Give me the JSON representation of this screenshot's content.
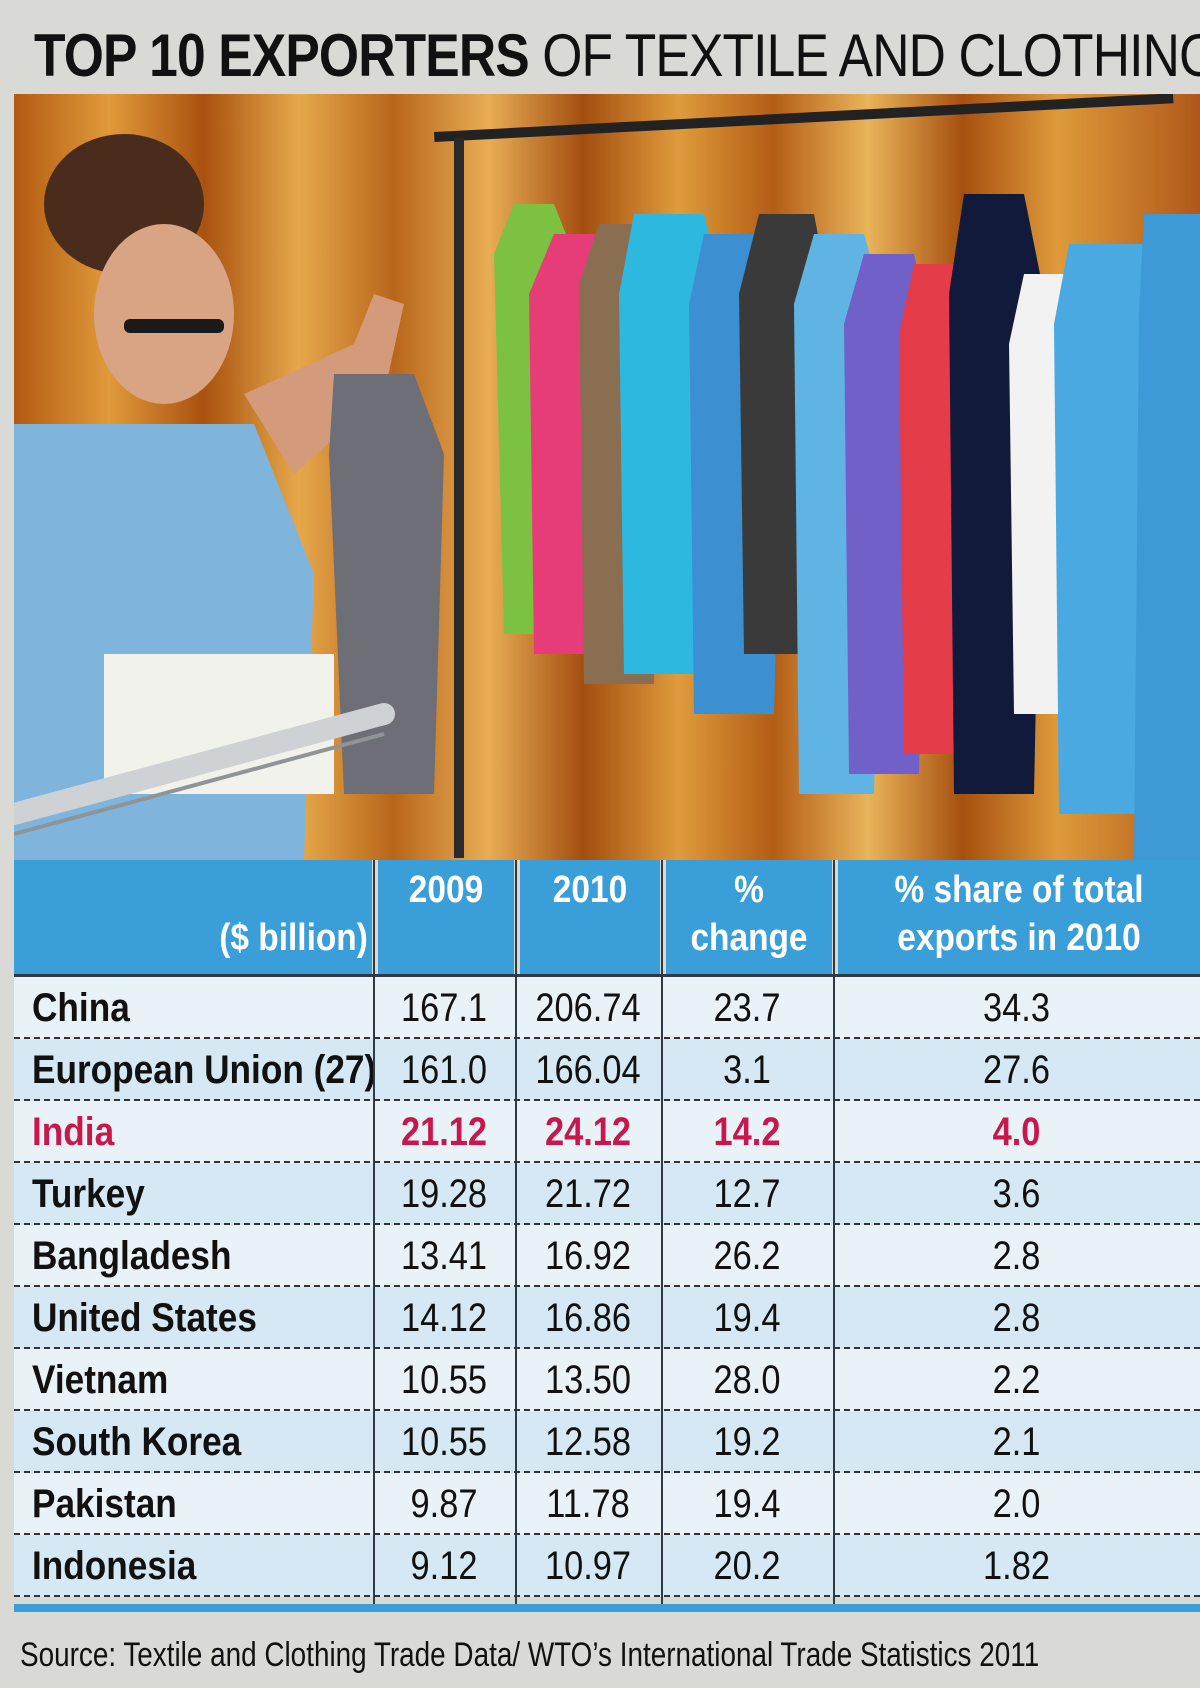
{
  "title": {
    "bold": "TOP 10 EXPORTERS",
    "light": "OF TEXTILE AND CLOTHING"
  },
  "colors": {
    "header_blue": "#3a9fd9",
    "highlight_red": "#c8174d",
    "row_shade": "#d5e8f3",
    "row_plain": "#e9f2f7"
  },
  "chart_data": {
    "type": "table",
    "columns": [
      "($ billion)",
      "2009",
      "2010",
      "% change",
      "% share of total exports in 2010"
    ],
    "header_lines": {
      "unit": "($ billion)",
      "c2009": "2009",
      "c2010": "2010",
      "change": "% change",
      "share_line1": "% share of total",
      "share_line2": "exports in 2010"
    },
    "rows": [
      {
        "country": "China",
        "v2009": "167.1",
        "v2010": "206.74",
        "change": "23.7",
        "share": "34.3"
      },
      {
        "country": "European Union (27)",
        "v2009": "161.0",
        "v2010": "166.04",
        "change": "3.1",
        "share": "27.6"
      },
      {
        "country": "India",
        "v2009": "21.12",
        "v2010": "24.12",
        "change": "14.2",
        "share": "4.0",
        "highlighted": true
      },
      {
        "country": "Turkey",
        "v2009": "19.28",
        "v2010": "21.72",
        "change": "12.7",
        "share": "3.6"
      },
      {
        "country": "Bangladesh",
        "v2009": "13.41",
        "v2010": "16.92",
        "change": "26.2",
        "share": "2.8"
      },
      {
        "country": "United States",
        "v2009": "14.12",
        "v2010": "16.86",
        "change": "19.4",
        "share": "2.8"
      },
      {
        "country": "Vietnam",
        "v2009": "10.55",
        "v2010": "13.50",
        "change": "28.0",
        "share": "2.2"
      },
      {
        "country": "South Korea",
        "v2009": "10.55",
        "v2010": "12.58",
        "change": "19.2",
        "share": "2.1"
      },
      {
        "country": "Pakistan",
        "v2009": "9.87",
        "v2010": "11.78",
        "change": "19.4",
        "share": "2.0"
      },
      {
        "country": "Indonesia",
        "v2009": "9.12",
        "v2010": "10.97",
        "change": "20.2",
        "share": "1.82"
      }
    ]
  },
  "source": "Source: Textile and Clothing Trade Data/ WTO’s International Trade Statistics 2011"
}
